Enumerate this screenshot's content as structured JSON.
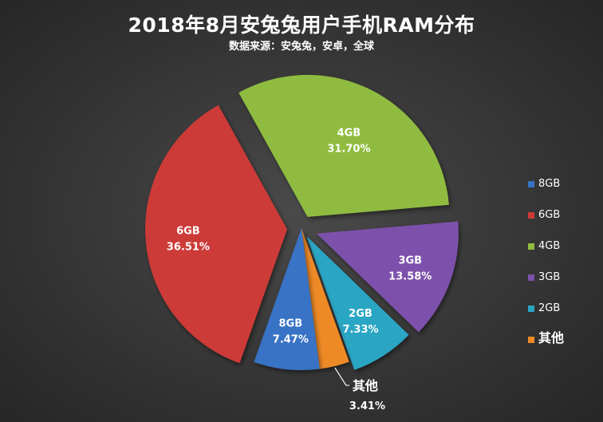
{
  "chart_data": {
    "type": "pie",
    "title": "2018年8月安兔兔用户手机RAM分布",
    "subtitle": "数据来源：安兔兔，安卓，全球",
    "slices": [
      {
        "label": "4GB",
        "value": 31.7,
        "value_label": "31.70%",
        "color": "#8fbc3f"
      },
      {
        "label": "3GB",
        "value": 13.58,
        "value_label": "13.58%",
        "color": "#7d51ab"
      },
      {
        "label": "2GB",
        "value": 7.33,
        "value_label": "7.33%",
        "color": "#2aa6c4"
      },
      {
        "label": "其他",
        "value": 3.41,
        "value_label": "3.41%",
        "color": "#ee8a25"
      },
      {
        "label": "8GB",
        "value": 7.47,
        "value_label": "7.47%",
        "color": "#3773c5"
      },
      {
        "label": "6GB",
        "value": 36.51,
        "value_label": "36.51%",
        "color": "#cc3a37"
      }
    ],
    "legend": {
      "position": "right",
      "items": [
        {
          "label": "8GB",
          "color": "#3773c5"
        },
        {
          "label": "6GB",
          "color": "#cc3a37"
        },
        {
          "label": "4GB",
          "color": "#8fbc3f"
        },
        {
          "label": "3GB",
          "color": "#7d51ab"
        },
        {
          "label": "2GB",
          "color": "#2aa6c4"
        },
        {
          "label": "其他",
          "color": "#ee8a25"
        }
      ]
    }
  }
}
